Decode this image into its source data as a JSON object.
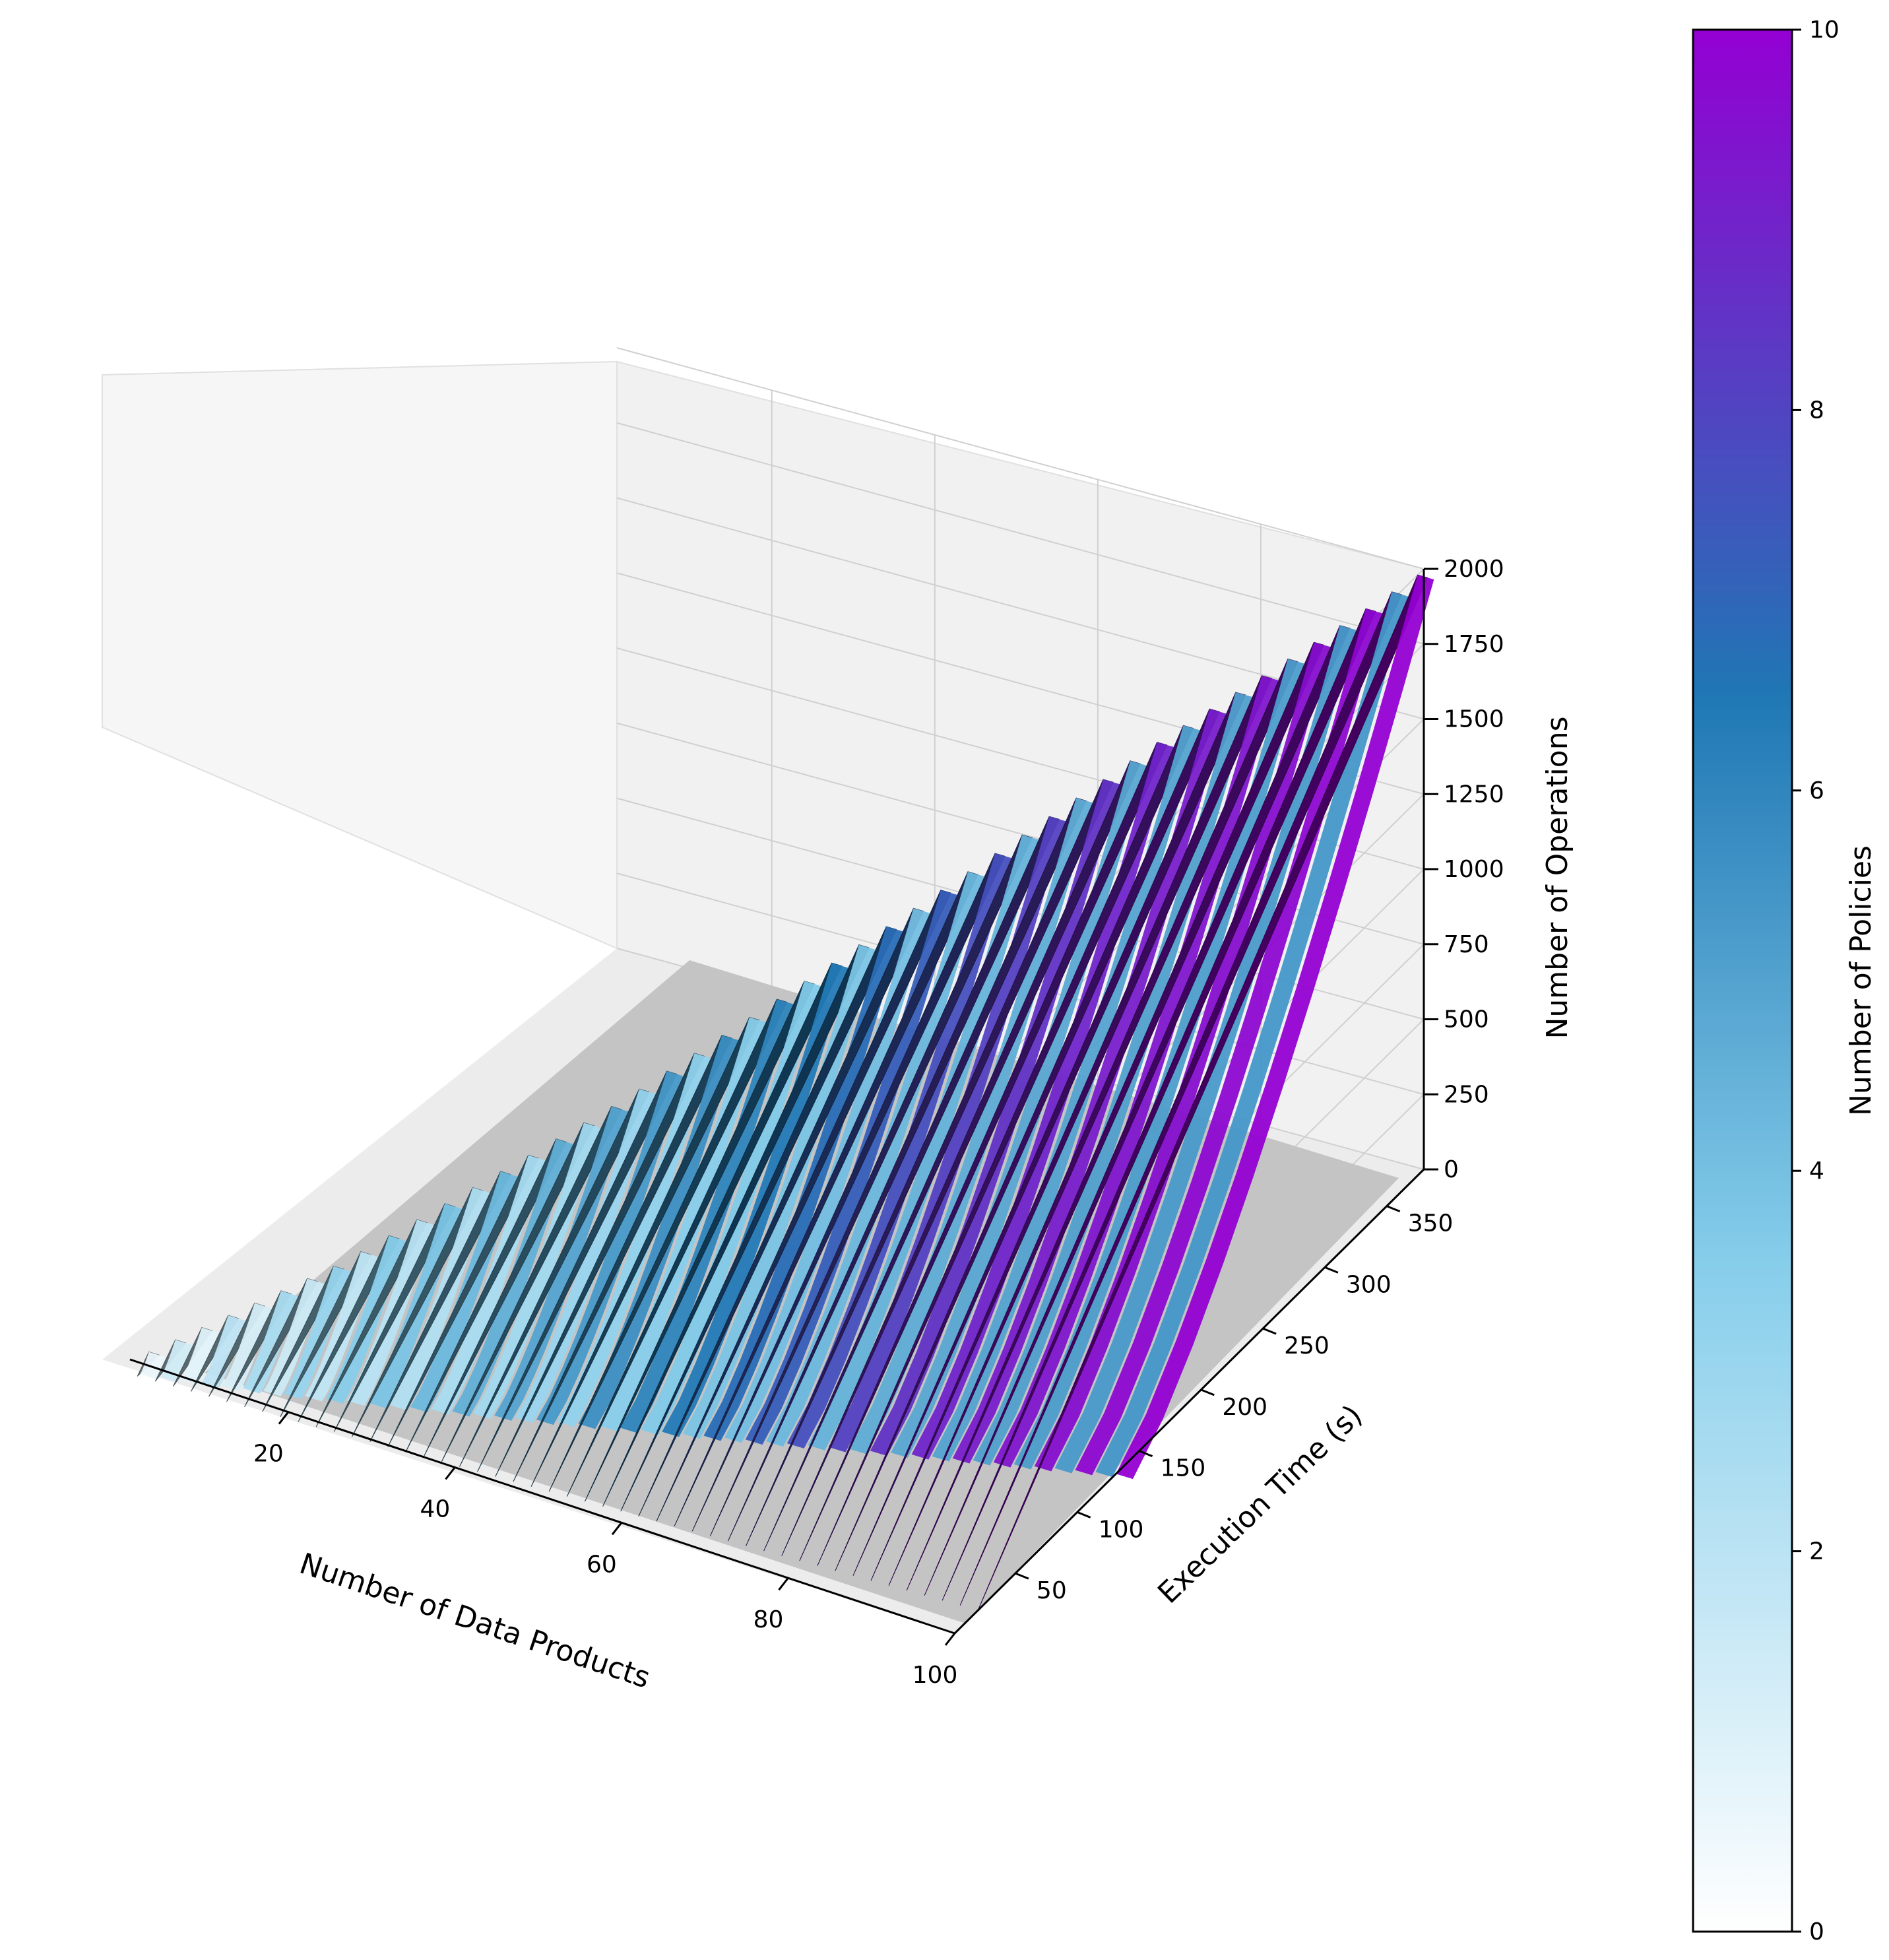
{
  "chart_data": {
    "type": "surface3d",
    "title": "",
    "xlabel": "Number of Data Products",
    "ylabel": "Execution Time (s)",
    "zlabel": "Number of Operations",
    "colorbar_label": "Number of Policies",
    "xlim": [
      1,
      100
    ],
    "ylim": [
      1,
      380
    ],
    "zlim": [
      0,
      2000
    ],
    "color_range": [
      0,
      10
    ],
    "x_ticks": [
      "20",
      "40",
      "60",
      "80",
      "100"
    ],
    "y_ticks": [
      "50",
      "100",
      "150",
      "200",
      "250",
      "300",
      "350"
    ],
    "z_ticks": [
      "0",
      "250",
      "500",
      "750",
      "1000",
      "1250",
      "1500",
      "1750",
      "2000"
    ],
    "colorbar_ticks": [
      "0",
      "2",
      "4",
      "6",
      "8",
      "10"
    ],
    "colormap": [
      "#ffffff",
      "#87ceeb",
      "#1f77b4",
      "#9400d3"
    ],
    "floor_color": "#c0c0c0",
    "surface_profile": {
      "x": [
        5,
        20,
        40,
        60,
        80,
        100
      ],
      "max_execution_time_s": [
        10,
        60,
        140,
        220,
        300,
        375
      ],
      "max_operations": [
        50,
        300,
        700,
        1150,
        1600,
        2000
      ],
      "max_policies": [
        1,
        3,
        5,
        7,
        9,
        10
      ]
    }
  }
}
